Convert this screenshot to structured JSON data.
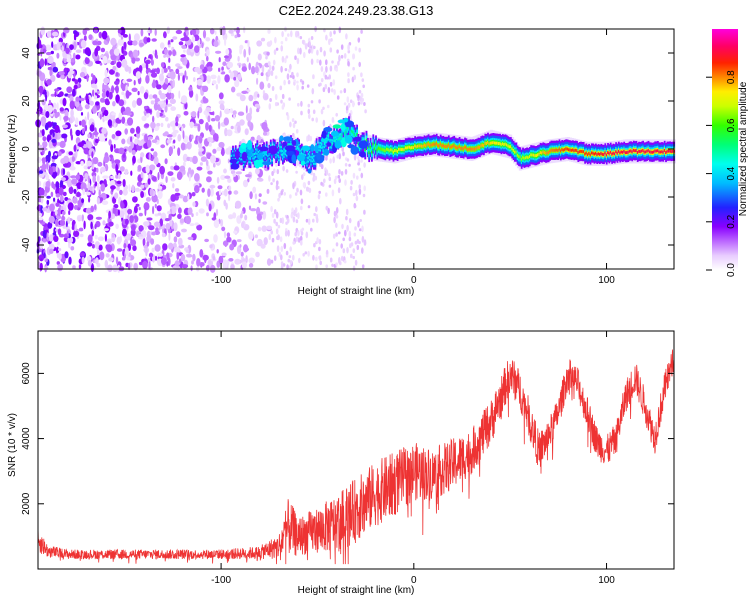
{
  "title": "C2E2.2024.249.23.38.G13",
  "chart_data": [
    {
      "type": "heatmap",
      "xlabel": "Height of straight line (km)",
      "ylabel": "Frequency (Hz)",
      "xlim": [
        -195,
        135
      ],
      "ylim": [
        -50,
        50
      ],
      "xticks": [
        -100,
        0,
        100
      ],
      "yticks": [
        -40,
        -20,
        0,
        20,
        40
      ],
      "colorbar": {
        "label": "Normalized spectral amplitude",
        "range": [
          0,
          1
        ],
        "ticks": [
          0.0,
          0.2,
          0.4,
          0.6,
          0.8
        ],
        "tick_labels": [
          "0.0",
          "0.2",
          "0.4",
          "0.6",
          "0.8"
        ],
        "colormap": "rainbow (white to violet to blue to cyan to green to yellow to red to magenta)"
      },
      "ridge": {
        "x": [
          -95,
          -85,
          -75,
          -65,
          -55,
          -45,
          -35,
          -28,
          -20,
          -10,
          0,
          10,
          20,
          30,
          40,
          50,
          55,
          60,
          70,
          80,
          90,
          100,
          110,
          120,
          130,
          135
        ],
        "y": [
          -4,
          -3,
          -2,
          1,
          -5,
          3,
          8,
          2,
          0,
          -1,
          1,
          2,
          1,
          0,
          3,
          1,
          -4,
          -3,
          -1,
          0,
          -2,
          -2,
          -1,
          -1,
          -1,
          -1
        ],
        "amplitude": [
          0.3,
          0.4,
          0.35,
          0.45,
          0.4,
          0.45,
          0.5,
          0.55,
          0.6,
          0.7,
          0.75,
          0.8,
          0.8,
          0.8,
          0.75,
          0.7,
          0.65,
          0.7,
          0.8,
          0.85,
          0.85,
          0.9,
          0.9,
          0.9,
          0.9,
          0.9
        ]
      },
      "noise_region": {
        "x_start": -195,
        "x_end": -75
      }
    },
    {
      "type": "line",
      "xlabel": "Height of straight line (km)",
      "ylabel": "SNR (10 * v/v)",
      "xlim": [
        -195,
        135
      ],
      "ylim": [
        0,
        7300
      ],
      "xticks": [
        -100,
        0,
        100
      ],
      "yticks": [
        2000,
        4000,
        6000
      ],
      "color": "#ee3333",
      "envelope": {
        "x": [
          -195,
          -190,
          -180,
          -160,
          -140,
          -120,
          -100,
          -80,
          -70,
          -65,
          -60,
          -50,
          -40,
          -30,
          -20,
          -10,
          0,
          10,
          20,
          30,
          40,
          50,
          55,
          60,
          65,
          70,
          75,
          80,
          85,
          90,
          95,
          100,
          105,
          110,
          115,
          120,
          125,
          130,
          135
        ],
        "mean": [
          900,
          550,
          450,
          450,
          450,
          450,
          450,
          500,
          700,
          1300,
          1000,
          1200,
          1400,
          1800,
          2300,
          2600,
          3000,
          2900,
          3200,
          3600,
          4500,
          6000,
          5500,
          4600,
          3600,
          4100,
          4800,
          6000,
          5700,
          4800,
          3900,
          3600,
          4000,
          5300,
          5900,
          5000,
          4000,
          5500,
          6500
        ],
        "amplitude": [
          400,
          200,
          150,
          150,
          150,
          150,
          150,
          200,
          400,
          900,
          600,
          700,
          900,
          1000,
          1000,
          1000,
          900,
          800,
          800,
          700,
          700,
          600,
          600,
          600,
          600,
          500,
          500,
          500,
          500,
          500,
          500,
          500,
          500,
          500,
          500,
          500,
          500,
          500,
          400
        ]
      }
    }
  ]
}
